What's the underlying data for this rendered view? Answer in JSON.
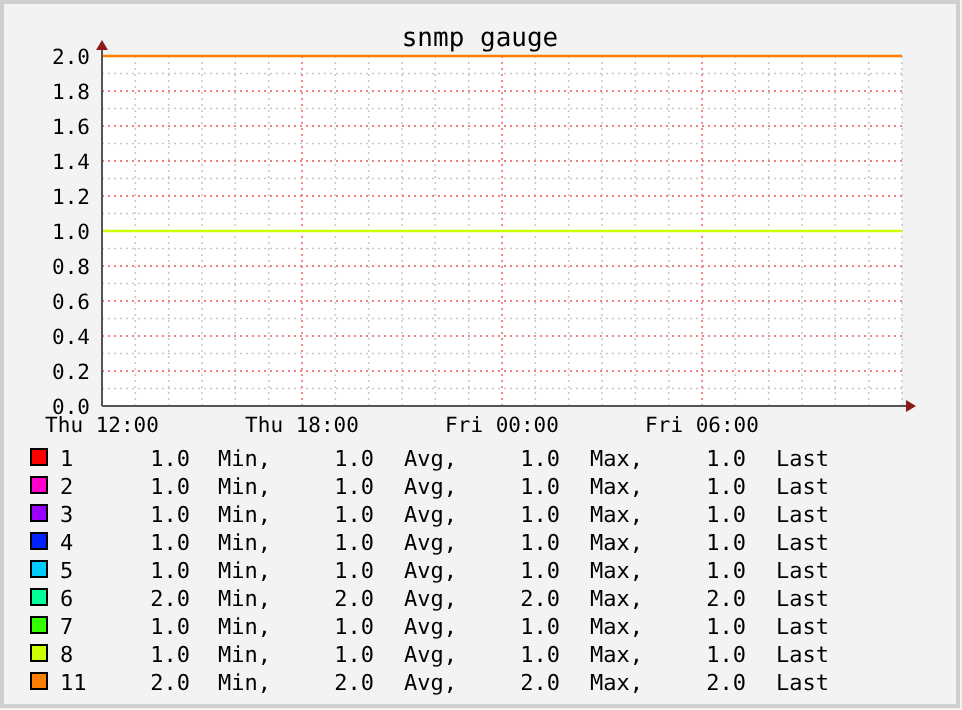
{
  "chart_data": {
    "type": "line",
    "title": "snmp gauge",
    "categories": [
      "Thu 12:00",
      null,
      null,
      null,
      null,
      null,
      "Thu 18:00",
      null,
      null,
      null,
      null,
      null,
      "Fri 00:00",
      null,
      null,
      null,
      null,
      null,
      "Fri 06:00",
      null,
      null,
      null,
      null,
      null,
      null
    ],
    "ylim": [
      0,
      2
    ],
    "yticks": [
      {
        "value": 0,
        "label": "0.0"
      },
      {
        "value": 0.2,
        "label": "0.2"
      },
      {
        "value": 0.4,
        "label": "0.4"
      },
      {
        "value": 0.6,
        "label": "0.6"
      },
      {
        "value": 0.8,
        "label": "0.8"
      },
      {
        "value": 1,
        "label": "1.0"
      },
      {
        "value": 1.2,
        "label": "1.2"
      },
      {
        "value": 1.4,
        "label": "1.4"
      },
      {
        "value": 1.6,
        "label": "1.6"
      },
      {
        "value": 1.8,
        "label": "1.8"
      },
      {
        "value": 2,
        "label": "2.0"
      }
    ],
    "grid": true,
    "legend": "bottom",
    "marker": "none",
    "line_style": "solid",
    "series": [
      {
        "name": "1",
        "color": "#ff0000",
        "values": [
          null,
          null,
          null,
          null,
          null,
          null,
          null,
          null,
          null,
          null,
          null,
          null,
          null,
          null,
          null,
          null,
          null,
          null,
          null,
          null,
          null,
          null,
          null,
          null,
          null
        ]
      },
      {
        "name": "2",
        "color": "#ff00cc",
        "values": [
          null,
          null,
          null,
          null,
          null,
          null,
          null,
          null,
          null,
          null,
          null,
          null,
          null,
          null,
          null,
          null,
          null,
          null,
          null,
          null,
          null,
          null,
          null,
          null,
          null
        ]
      },
      {
        "name": "3",
        "color": "#9900ff",
        "values": [
          null,
          null,
          null,
          null,
          null,
          null,
          null,
          null,
          null,
          null,
          null,
          null,
          null,
          null,
          null,
          null,
          null,
          null,
          null,
          null,
          null,
          null,
          null,
          null,
          null
        ]
      },
      {
        "name": "4",
        "color": "#0022ff",
        "values": [
          null,
          null,
          null,
          null,
          null,
          null,
          null,
          null,
          null,
          null,
          null,
          null,
          null,
          null,
          null,
          null,
          null,
          null,
          null,
          null,
          null,
          null,
          null,
          null,
          null
        ]
      },
      {
        "name": "5",
        "color": "#00ccff",
        "values": [
          null,
          null,
          null,
          null,
          null,
          null,
          null,
          null,
          null,
          null,
          null,
          null,
          null,
          null,
          null,
          null,
          null,
          null,
          null,
          null,
          null,
          null,
          null,
          null,
          null
        ]
      },
      {
        "name": "6",
        "color": "#00ff99",
        "values": [
          null,
          null,
          null,
          null,
          null,
          null,
          null,
          null,
          null,
          null,
          null,
          null,
          null,
          null,
          null,
          null,
          null,
          null,
          null,
          null,
          null,
          null,
          null,
          null,
          null
        ]
      },
      {
        "name": "7",
        "color": "#33ff00",
        "values": [
          null,
          null,
          null,
          null,
          null,
          null,
          null,
          null,
          null,
          null,
          null,
          null,
          null,
          null,
          null,
          null,
          null,
          null,
          null,
          null,
          null,
          null,
          null,
          null,
          null
        ]
      },
      {
        "name": "8",
        "color": "#ccff00",
        "values": [
          1,
          1,
          1,
          1,
          1,
          1,
          1,
          1,
          1,
          1,
          1,
          1,
          1,
          1,
          1,
          1,
          1,
          1,
          1,
          1,
          1,
          1,
          1,
          1,
          1
        ]
      },
      {
        "name": "11",
        "color": "#ff8000",
        "values": [
          2,
          2,
          2,
          2,
          2,
          2,
          2,
          2,
          2,
          2,
          2,
          2,
          2,
          2,
          2,
          2,
          2,
          2,
          2,
          2,
          2,
          2,
          2,
          2,
          2
        ]
      }
    ],
    "annotations": [
      "1.0 Min, 1.0 Avg, 1.0 Max, 1.0 Last",
      "1.0 Min, 1.0 Avg, 1.0 Max, 1.0 Last",
      "1.0 Min, 1.0 Avg, 1.0 Max, 1.0 Last",
      "1.0 Min, 1.0 Avg, 1.0 Max, 1.0 Last",
      "1.0 Min, 1.0 Avg, 1.0 Max, 1.0 Last",
      "2.0 Min, 2.0 Avg, 2.0 Max, 2.0 Last",
      "1.0 Min, 1.0 Avg, 1.0 Max, 1.0 Last",
      "1.0 Min, 1.0 Avg, 1.0 Max, 1.0 Last",
      "2.0 Min, 2.0 Avg, 2.0 Max, 2.0 Last"
    ]
  }
}
